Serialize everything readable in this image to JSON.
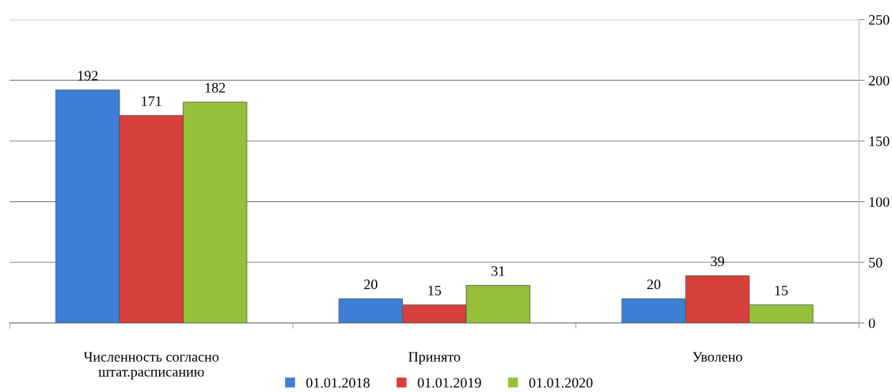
{
  "chart_data": {
    "type": "bar",
    "categories": [
      "Численность согласно\nштат.расписанию",
      "Принято",
      "Уволено"
    ],
    "series": [
      {
        "name": "01.01.2018",
        "color": "#3d7fd6",
        "values": [
          192,
          20,
          20
        ]
      },
      {
        "name": "01.01.2019",
        "color": "#d8403b",
        "values": [
          171,
          15,
          39
        ]
      },
      {
        "name": "01.01.2020",
        "color": "#97c03a",
        "values": [
          182,
          31,
          15
        ]
      }
    ],
    "ylim": [
      0,
      250
    ],
    "yticks": [
      0,
      50,
      100,
      150,
      200,
      250
    ],
    "grid": "y",
    "legend": "bottom",
    "data_labels": true
  }
}
